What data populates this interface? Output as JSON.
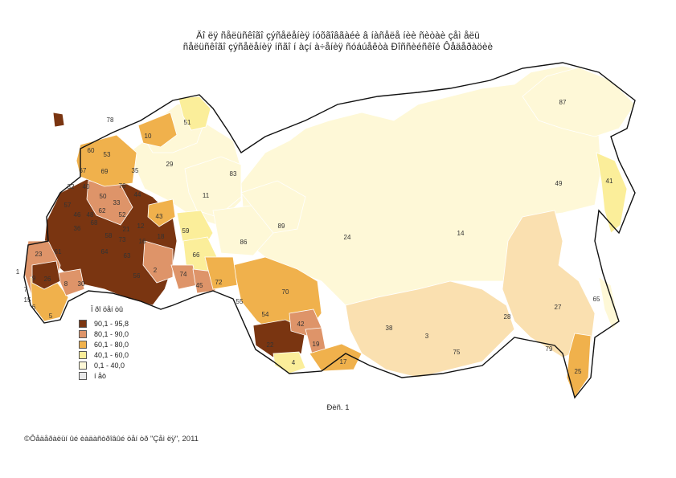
{
  "title_line1": "Äî ëÿ ñåëüñêîãî çýñåëåíèÿ íóõãîâãàéè â íàñåëå íèè ñèòàè çåì åëü",
  "title_line2": "ñåëüñêîãî çýñåëåíèÿ íñãî í àçí à÷åíèÿ ñóáúåêòà Ðîññèéñêîé Ôåäåðàöèè",
  "legend": {
    "title": "Ï ðî öåí òû",
    "items": [
      {
        "label": "90,1 - 95,8",
        "color": "#7a3511"
      },
      {
        "label": "80,1 - 90,0",
        "color": "#de9469"
      },
      {
        "label": "60,1 - 80,0",
        "color": "#f0b14c"
      },
      {
        "label": "40,1 - 60,0",
        "color": "#fbee9a"
      },
      {
        "label": "0,1 - 40,0",
        "color": "#fef8d7"
      },
      {
        "label": "í åò",
        "color": "#e8e8e8"
      }
    ]
  },
  "caption": "Ðèñ. 1",
  "copyright": "Ôåäåðàëüí ûé èàäàñòðîâûé öåí òð \"Çåì ëÿ\", 2011",
  "region_labels": [
    "87",
    "51",
    "78",
    "10",
    "60",
    "53",
    "69",
    "67",
    "40",
    "76",
    "35",
    "29",
    "83",
    "32",
    "50",
    "44",
    "62",
    "33",
    "52",
    "48",
    "57",
    "36",
    "46",
    "68",
    "58",
    "73",
    "21",
    "12",
    "43",
    "18",
    "16",
    "61",
    "64",
    "63",
    "56",
    "2",
    "74",
    "45",
    "72",
    "23",
    "26",
    "8",
    "30",
    "9",
    "7",
    "15",
    "6",
    "5",
    "59",
    "66",
    "11",
    "86",
    "89",
    "24",
    "14",
    "49",
    "41",
    "55",
    "70",
    "54",
    "42",
    "19",
    "22",
    "4",
    "17",
    "38",
    "3",
    "75",
    "28",
    "27",
    "79",
    "25",
    "65",
    "1"
  ]
}
